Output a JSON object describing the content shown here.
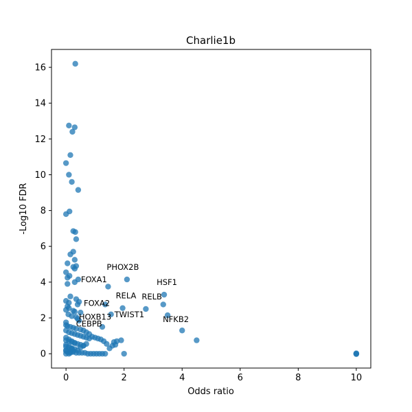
{
  "chart_data": {
    "type": "scatter",
    "title": "Charlie1b",
    "xlabel": "Odds ratio",
    "ylabel": "-Log10 FDR",
    "xlim": [
      -0.5,
      10.5
    ],
    "ylim": [
      -0.8,
      17.0
    ],
    "xticks": [
      0,
      2,
      4,
      6,
      8,
      10
    ],
    "yticks": [
      0,
      2,
      4,
      6,
      8,
      10,
      12,
      14,
      16
    ],
    "grid": false,
    "colors": {
      "point": "#1f77b4",
      "axis": "#000000"
    },
    "series": [
      {
        "x": [
          0.32,
          0.1,
          0.3,
          0.22,
          0.15,
          0.0,
          0.1,
          0.2,
          0.42,
          0.12,
          0.0,
          0.25,
          0.32,
          0.35,
          0.25,
          0.15,
          0.3,
          0.05,
          0.35,
          0.25,
          0.3,
          0.0,
          0.12,
          0.05,
          0.42,
          0.3,
          0.05,
          0.15,
          0.35,
          0.0,
          0.45,
          0.1,
          0.4,
          0.05,
          0.1,
          0.0,
          0.25,
          0.3,
          0.5,
          0.08,
          0.2,
          0.35,
          0.4,
          0.45,
          0.0,
          0.0,
          0.05,
          0.15,
          0.25,
          0.35,
          0.5,
          0.6,
          0.7,
          0.8,
          0.9,
          1.0,
          1.1,
          1.2,
          1.3,
          0.0,
          0.1,
          0.2,
          0.3,
          0.4,
          0.5,
          0.6,
          0.7,
          0.8,
          0.0,
          0.1,
          0.2,
          0.3,
          0.4,
          0.5,
          0.6,
          0.0,
          0.1,
          0.2,
          0.3,
          0.4,
          0.0,
          0.05,
          0.15,
          0.25,
          0.35,
          0.45,
          0.55,
          0.65,
          0.75,
          0.85,
          0.95,
          1.05,
          1.15,
          1.25,
          1.35,
          0.0,
          0.1,
          0.2,
          0.3,
          0.0,
          0.1,
          0.2,
          0.0,
          0.1,
          0.0,
          0.15,
          0.25,
          0.2,
          0.5,
          0.6,
          0.7,
          1.45,
          2.1,
          3.38,
          1.35,
          1.95,
          2.75,
          3.35,
          1.55,
          3.5,
          1.25,
          4.0,
          4.5,
          1.4,
          1.65,
          1.75,
          1.9,
          1.5,
          1.6,
          1.7,
          2.0,
          10.0,
          10.0,
          10.0
        ],
        "y": [
          16.2,
          12.75,
          12.65,
          12.4,
          11.1,
          10.65,
          10.0,
          9.6,
          9.15,
          7.95,
          7.8,
          6.85,
          6.8,
          6.4,
          5.7,
          5.55,
          5.25,
          5.05,
          4.9,
          4.85,
          4.75,
          4.55,
          4.35,
          4.25,
          4.15,
          4.0,
          3.9,
          3.2,
          3.05,
          2.95,
          2.9,
          2.85,
          2.75,
          2.65,
          2.55,
          2.45,
          2.4,
          2.35,
          2.3,
          2.2,
          2.1,
          2.05,
          1.95,
          1.85,
          1.75,
          1.6,
          1.55,
          1.5,
          1.45,
          1.4,
          1.35,
          1.3,
          1.2,
          1.1,
          0.95,
          0.9,
          0.85,
          0.8,
          0.7,
          1.3,
          1.2,
          1.15,
          1.1,
          1.05,
          1.0,
          0.95,
          0.9,
          0.85,
          0.75,
          0.7,
          0.65,
          0.6,
          0.55,
          0.5,
          0.45,
          0.4,
          0.35,
          0.3,
          0.25,
          0.2,
          0.15,
          0.1,
          0.1,
          0.1,
          0.05,
          0.05,
          0.05,
          0.05,
          0.0,
          0.0,
          0.0,
          0.0,
          0.0,
          0.0,
          0.0,
          0.9,
          0.8,
          0.7,
          0.6,
          0.5,
          0.4,
          0.3,
          0.2,
          0.0,
          0.0,
          0.05,
          0.15,
          0.25,
          0.35,
          0.45,
          0.55,
          3.75,
          4.15,
          3.3,
          2.75,
          2.55,
          2.5,
          2.75,
          2.2,
          2.15,
          1.5,
          1.3,
          0.75,
          0.55,
          0.65,
          0.7,
          0.75,
          0.3,
          0.45,
          0.5,
          0.0,
          0.02,
          0.0,
          -0.02
        ]
      }
    ],
    "annotations": [
      {
        "text": "PHOX2B",
        "x": 2.1,
        "y": 4.15
      },
      {
        "text": "FOXA1",
        "x": 0.42,
        "y": 4.15
      },
      {
        "text": "HSF1",
        "x": 3.38,
        "y": 3.3
      },
      {
        "text": "FOXA2",
        "x": 0.4,
        "y": 2.75
      },
      {
        "text": "RELA",
        "x": 1.95,
        "y": 2.55
      },
      {
        "text": "RELB",
        "x": 2.75,
        "y": 2.5
      },
      {
        "text": "HOXB13",
        "x": 0.3,
        "y": 2.05
      },
      {
        "text": "TWIST1",
        "x": 1.55,
        "y": 2.2
      },
      {
        "text": "NFKB2",
        "x": 3.5,
        "y": 2.15
      },
      {
        "text": "CEBPB",
        "x": 0.25,
        "y": 1.45
      }
    ]
  }
}
